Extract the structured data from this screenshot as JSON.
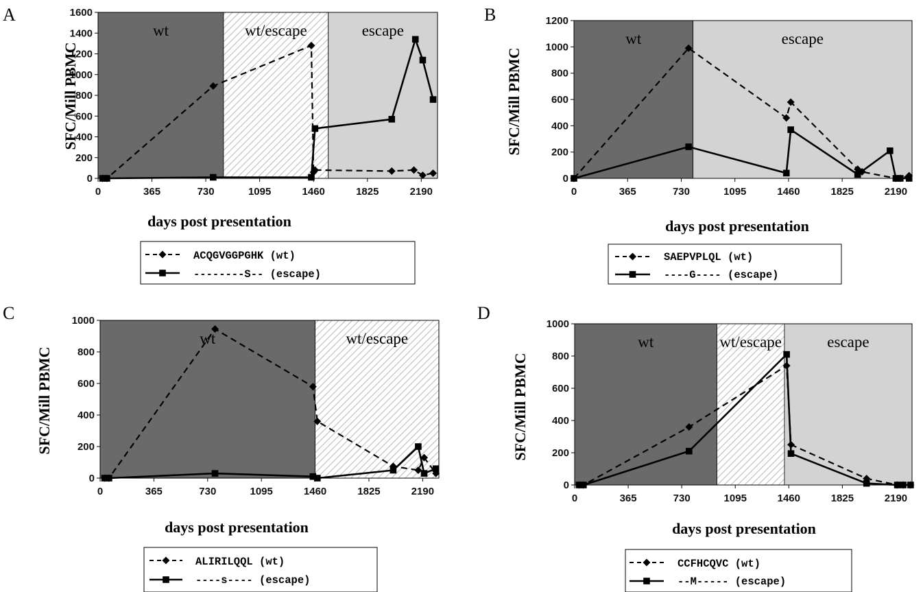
{
  "colors": {
    "wt_region": "#6a6a6a",
    "escape_region": "#d3d3d3",
    "mixed_region_hatch": "#bdbdbd",
    "line": "#000000"
  },
  "chart_data": [
    {
      "panel": "A",
      "type": "line",
      "xlabel": "days post presentation",
      "ylabel": "SFC/Mill PBMC",
      "xlim": [
        0,
        2300
      ],
      "ylim": [
        0,
        1600
      ],
      "xticks": [
        0,
        365,
        730,
        1095,
        1460,
        1825,
        2190
      ],
      "yticks": [
        0,
        200,
        400,
        600,
        800,
        1000,
        1200,
        1400,
        1600
      ],
      "regions": [
        {
          "label": "wt",
          "kind": "wt",
          "x": [
            0,
            850
          ]
        },
        {
          "label": "wt/escape",
          "kind": "mixed",
          "x": [
            850,
            1560
          ]
        },
        {
          "label": "escape",
          "kind": "escape",
          "x": [
            1560,
            2300
          ]
        }
      ],
      "series": [
        {
          "name": "ACQGVGGPGHK (wt)",
          "style": "dashed",
          "marker": "diamond",
          "x": [
            30,
            60,
            780,
            1445,
            1460,
            1470,
            1990,
            2140,
            2200,
            2270
          ],
          "y": [
            0,
            0,
            890,
            1280,
            60,
            80,
            70,
            80,
            30,
            50
          ]
        },
        {
          "name": "--------S-- (escape)",
          "style": "solid",
          "marker": "square",
          "x": [
            30,
            60,
            780,
            1445,
            1470,
            1990,
            2150,
            2200,
            2270
          ],
          "y": [
            0,
            0,
            10,
            10,
            480,
            570,
            1340,
            1140,
            760
          ]
        }
      ]
    },
    {
      "panel": "B",
      "type": "line",
      "xlabel": "days post presentation",
      "ylabel": "SFC/Mill PBMC",
      "xlim": [
        0,
        2300
      ],
      "ylim": [
        0,
        1200
      ],
      "xticks": [
        0,
        365,
        730,
        1095,
        1460,
        1825,
        2190
      ],
      "yticks": [
        0,
        200,
        400,
        600,
        800,
        1000,
        1200
      ],
      "regions": [
        {
          "label": "wt",
          "kind": "wt",
          "x": [
            0,
            810
          ]
        },
        {
          "label": "escape",
          "kind": "escape",
          "x": [
            810,
            2300
          ]
        }
      ],
      "series": [
        {
          "name": "SAEPVPLQL (wt)",
          "style": "dashed",
          "marker": "diamond",
          "x": [
            0,
            780,
            1445,
            1475,
            1930,
            1960,
            2190,
            2220,
            2280
          ],
          "y": [
            0,
            990,
            460,
            580,
            70,
            50,
            0,
            0,
            20
          ]
        },
        {
          "name": "----G---- (escape)",
          "style": "solid",
          "marker": "square",
          "x": [
            0,
            780,
            1445,
            1475,
            1930,
            2150,
            2190,
            2220,
            2280
          ],
          "y": [
            0,
            240,
            40,
            370,
            30,
            210,
            0,
            0,
            0
          ]
        }
      ]
    },
    {
      "panel": "C",
      "type": "line",
      "xlabel": "days post presentation",
      "ylabel": "SFC/Mill PBMC",
      "xlim": [
        0,
        2300
      ],
      "ylim": [
        0,
        1000
      ],
      "xticks": [
        0,
        365,
        730,
        1095,
        1460,
        1825,
        2190
      ],
      "yticks": [
        0,
        200,
        400,
        600,
        800,
        1000
      ],
      "regions": [
        {
          "label": "wt",
          "kind": "wt",
          "x": [
            0,
            1460
          ]
        },
        {
          "label": "wt/escape",
          "kind": "mixed",
          "x": [
            1460,
            2300
          ]
        }
      ],
      "series": [
        {
          "name": "ALIRILQQL (wt)",
          "style": "dashed",
          "marker": "diamond",
          "x": [
            30,
            60,
            780,
            1445,
            1475,
            1990,
            2160,
            2200,
            2280
          ],
          "y": [
            0,
            0,
            945,
            580,
            360,
            75,
            50,
            130,
            30
          ]
        },
        {
          "name": "----s---- (escape)",
          "style": "solid",
          "marker": "square",
          "x": [
            30,
            60,
            780,
            1445,
            1475,
            1990,
            2160,
            2200,
            2280
          ],
          "y": [
            0,
            0,
            30,
            10,
            0,
            50,
            200,
            30,
            60
          ]
        }
      ]
    },
    {
      "panel": "D",
      "type": "line",
      "xlabel": "days post presentation",
      "ylabel": "SFC/Mill PBMC",
      "xlim": [
        0,
        2300
      ],
      "ylim": [
        0,
        1000
      ],
      "xticks": [
        0,
        365,
        730,
        1095,
        1460,
        1825,
        2190
      ],
      "yticks": [
        0,
        200,
        400,
        600,
        800,
        1000
      ],
      "regions": [
        {
          "label": "wt",
          "kind": "wt",
          "x": [
            0,
            970
          ]
        },
        {
          "label": "wt/escape",
          "kind": "mixed",
          "x": [
            970,
            1430
          ]
        },
        {
          "label": "escape",
          "kind": "escape",
          "x": [
            1430,
            2300
          ]
        }
      ],
      "series": [
        {
          "name": "CCFHCQVC (wt)",
          "style": "dashed",
          "marker": "diamond",
          "x": [
            30,
            60,
            780,
            1445,
            1475,
            1990,
            2200,
            2240,
            2290
          ],
          "y": [
            0,
            0,
            360,
            740,
            250,
            40,
            0,
            0,
            0
          ]
        },
        {
          "name": "--M----- (escape)",
          "style": "solid",
          "marker": "square",
          "x": [
            30,
            60,
            780,
            1445,
            1475,
            1990,
            2200,
            2240,
            2290
          ],
          "y": [
            0,
            0,
            210,
            810,
            195,
            10,
            0,
            0,
            0
          ]
        }
      ]
    }
  ]
}
